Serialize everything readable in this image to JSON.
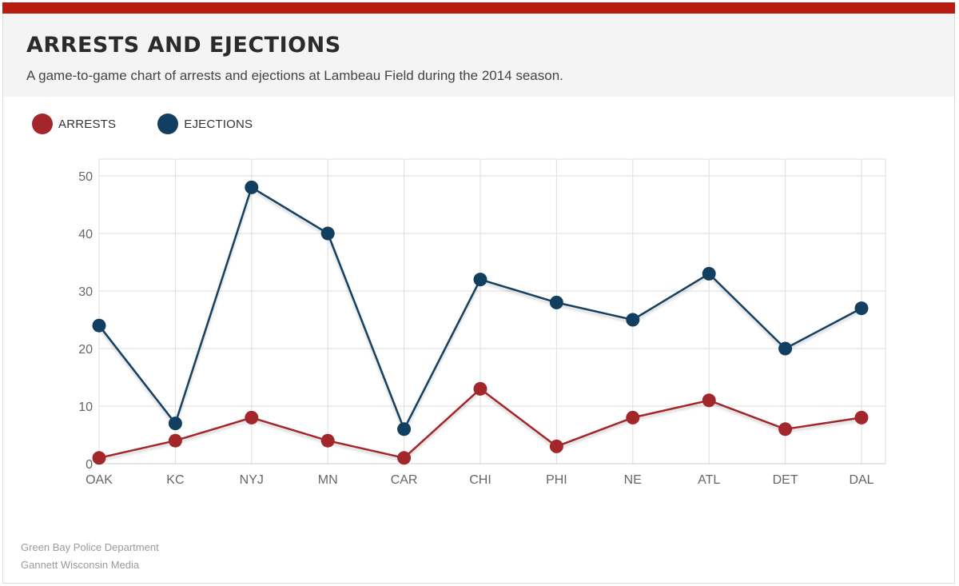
{
  "header": {
    "title": "ARRESTS AND EJECTIONS",
    "subtitle": "A game-to-game chart of arrests and ejections at Lambeau Field during the 2014 season."
  },
  "legend": [
    {
      "label": "ARRESTS",
      "color": "#a3262a"
    },
    {
      "label": "EJECTIONS",
      "color": "#123f60"
    }
  ],
  "chart_data": {
    "type": "line",
    "categories": [
      "OAK",
      "KC",
      "NYJ",
      "MN",
      "CAR",
      "CHI",
      "PHI",
      "NE",
      "ATL",
      "DET",
      "DAL"
    ],
    "series": [
      {
        "name": "ARRESTS",
        "color": "#a3262a",
        "values": [
          1,
          4,
          8,
          4,
          1,
          13,
          3,
          8,
          11,
          6,
          8
        ]
      },
      {
        "name": "EJECTIONS",
        "color": "#123f60",
        "values": [
          24,
          7,
          48,
          40,
          6,
          32,
          28,
          25,
          33,
          20,
          27
        ]
      }
    ],
    "ylim": [
      0,
      50
    ],
    "yticks": [
      0,
      10,
      20,
      30,
      40,
      50
    ],
    "grid": true,
    "legend_position": "top-left"
  },
  "sources": [
    "Green Bay Police Department",
    "Gannett Wisconsin Media"
  ]
}
